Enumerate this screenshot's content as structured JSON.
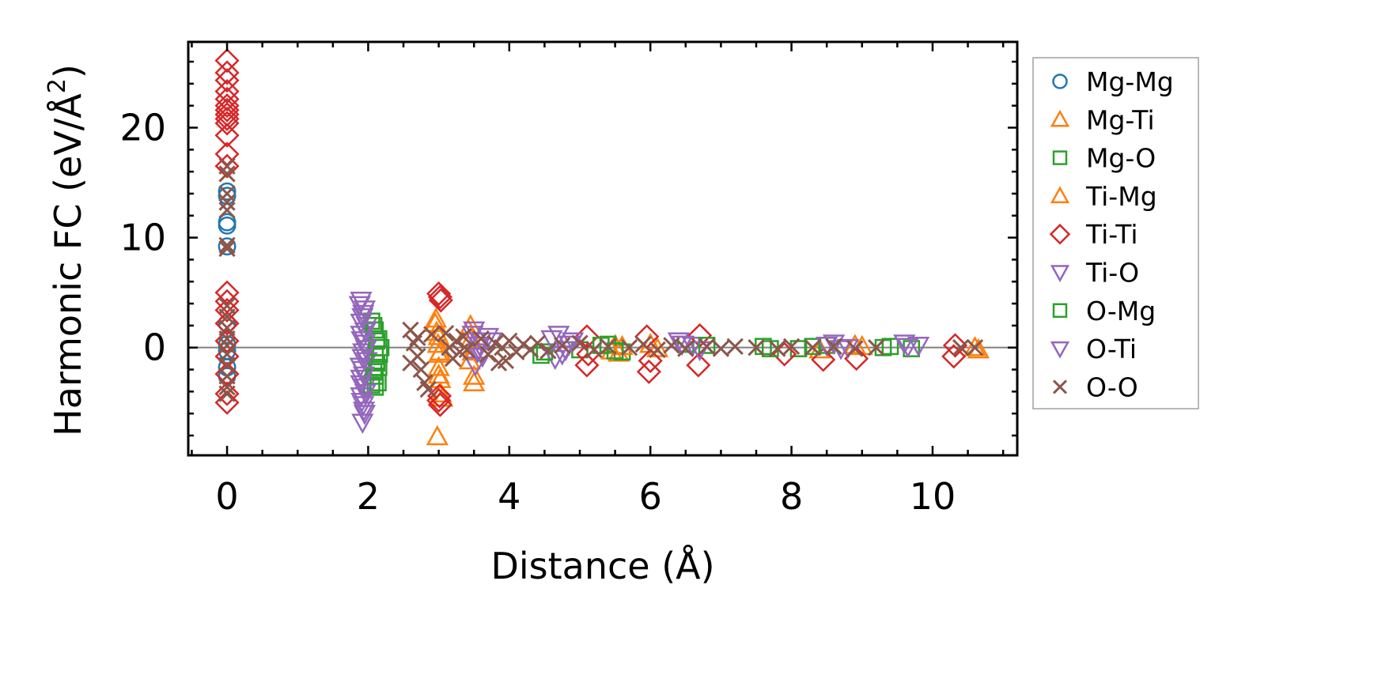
{
  "chart_data": {
    "type": "scatter",
    "title": "",
    "xlabel": "Distance (Å)",
    "ylabel": {
      "prefix": "Harmonic FC (eV/Å",
      "sup": "2",
      "suffix": ")"
    },
    "xlim": [
      -0.55,
      11.2
    ],
    "ylim": [
      -9.8,
      27.8
    ],
    "xticks": [
      0,
      2,
      4,
      6,
      8,
      10
    ],
    "yticks": [
      0,
      10,
      20
    ],
    "minor_ticks": true,
    "ticks_direction": "in",
    "ticks_all_sides": true,
    "zero_line": true,
    "zero_line_color": "#808080",
    "legend_position": "outside-right",
    "series": [
      {
        "name": "Mg-Mg",
        "color": "#1f77b4",
        "marker": "circle",
        "points": [
          [
            0,
            14.2
          ],
          [
            0,
            13.8
          ],
          [
            0,
            11.4
          ],
          [
            0,
            11.1
          ],
          [
            0,
            9.2
          ],
          [
            0,
            2.2
          ],
          [
            0,
            0.3
          ],
          [
            0,
            -0.3
          ],
          [
            0,
            -1.8
          ],
          [
            0,
            -2.6
          ]
        ]
      },
      {
        "name": "Mg-Ti",
        "color": "#ff7f0e",
        "marker": "triangle-up",
        "points": [
          [
            2.96,
            2.6
          ],
          [
            2.97,
            1.4
          ],
          [
            2.99,
            0.3
          ],
          [
            3.0,
            -0.6
          ],
          [
            3.0,
            -1.8
          ],
          [
            3.02,
            -2.9
          ],
          [
            3.03,
            -4.2
          ],
          [
            2.98,
            -8.1
          ],
          [
            3.45,
            2.0
          ],
          [
            3.46,
            0.8
          ],
          [
            3.44,
            -1.2
          ],
          [
            3.5,
            -3.2
          ],
          [
            5.5,
            0.2
          ],
          [
            5.55,
            -0.5
          ],
          [
            6.0,
            0.3
          ],
          [
            8.4,
            -0.2
          ],
          [
            9.0,
            0.1
          ],
          [
            10.65,
            -0.2
          ]
        ]
      },
      {
        "name": "Mg-O",
        "color": "#2ca02c",
        "marker": "square",
        "points": [
          [
            2.05,
            2.4
          ],
          [
            2.1,
            1.6
          ],
          [
            2.15,
            0.8
          ],
          [
            2.18,
            0.0
          ],
          [
            2.1,
            -0.8
          ],
          [
            2.15,
            -1.8
          ],
          [
            2.1,
            -2.6
          ],
          [
            2.05,
            -3.4
          ],
          [
            2.1,
            -3.6
          ],
          [
            4.45,
            -0.7
          ],
          [
            5.0,
            -0.2
          ],
          [
            5.4,
            0.3
          ],
          [
            5.6,
            -0.4
          ],
          [
            6.5,
            0.3
          ],
          [
            7.6,
            0.1
          ],
          [
            8.1,
            -0.1
          ],
          [
            8.5,
            0.2
          ],
          [
            9.4,
            0.1
          ],
          [
            9.7,
            -0.1
          ]
        ]
      },
      {
        "name": "Ti-Mg",
        "color": "#ff7f0e",
        "marker": "triangle-up",
        "points": [
          [
            2.95,
            2.2
          ],
          [
            3.0,
            1.0
          ],
          [
            3.02,
            -0.4
          ],
          [
            3.0,
            -2.5
          ],
          [
            3.05,
            -4.6
          ],
          [
            3.42,
            1.6
          ],
          [
            3.48,
            -0.4
          ],
          [
            3.5,
            -2.6
          ],
          [
            5.45,
            -0.3
          ],
          [
            5.6,
            0.1
          ],
          [
            6.1,
            -0.1
          ],
          [
            8.9,
            0.2
          ],
          [
            10.6,
            0.0
          ]
        ]
      },
      {
        "name": "Ti-Ti",
        "color": "#d62728",
        "marker": "diamond",
        "points": [
          [
            0,
            26.1
          ],
          [
            0,
            25.0
          ],
          [
            0,
            24.3
          ],
          [
            0,
            23.3
          ],
          [
            0,
            22.6
          ],
          [
            0,
            22.0
          ],
          [
            0,
            21.6
          ],
          [
            0,
            21.2
          ],
          [
            0,
            20.8
          ],
          [
            0,
            20.4
          ],
          [
            0,
            19.3
          ],
          [
            0,
            17.6
          ],
          [
            0,
            16.5
          ],
          [
            0,
            5.0
          ],
          [
            0,
            4.2
          ],
          [
            0,
            3.4
          ],
          [
            0,
            2.2
          ],
          [
            0,
            0.6
          ],
          [
            0,
            -0.8
          ],
          [
            0,
            -2.4
          ],
          [
            0,
            -4.2
          ],
          [
            0,
            -5.0
          ],
          [
            3.0,
            4.9
          ],
          [
            3.02,
            4.6
          ],
          [
            3.03,
            4.3
          ],
          [
            3.01,
            -4.4
          ],
          [
            3.0,
            -4.8
          ],
          [
            3.02,
            -5.2
          ],
          [
            5.1,
            1.0
          ],
          [
            5.12,
            -0.6
          ],
          [
            5.1,
            -1.6
          ],
          [
            5.95,
            1.0
          ],
          [
            6.0,
            -1.2
          ],
          [
            5.98,
            -2.2
          ],
          [
            6.7,
            1.1
          ],
          [
            6.68,
            -1.6
          ],
          [
            7.9,
            -0.6
          ],
          [
            8.45,
            -1.1
          ],
          [
            8.92,
            -1.0
          ],
          [
            10.3,
            -0.8
          ],
          [
            10.32,
            0.2
          ]
        ]
      },
      {
        "name": "Ti-O",
        "color": "#9467bd",
        "marker": "triangle-down",
        "points": [
          [
            1.9,
            4.3
          ],
          [
            1.95,
            3.5
          ],
          [
            1.92,
            2.8
          ],
          [
            1.98,
            2.0
          ],
          [
            1.9,
            1.2
          ],
          [
            1.95,
            0.4
          ],
          [
            1.93,
            -0.4
          ],
          [
            1.98,
            -1.2
          ],
          [
            1.92,
            -2.0
          ],
          [
            1.9,
            -2.8
          ],
          [
            1.95,
            -3.6
          ],
          [
            1.9,
            -4.4
          ],
          [
            1.93,
            -5.2
          ],
          [
            1.95,
            -6.0
          ],
          [
            1.92,
            -6.8
          ],
          [
            3.5,
            1.6
          ],
          [
            3.6,
            0.6
          ],
          [
            3.55,
            -0.4
          ],
          [
            3.52,
            -1.6
          ],
          [
            3.7,
            1.0
          ],
          [
            4.7,
            1.2
          ],
          [
            4.8,
            -0.2
          ],
          [
            4.65,
            -1.0
          ],
          [
            4.9,
            0.6
          ],
          [
            6.4,
            0.6
          ],
          [
            6.6,
            0.2
          ],
          [
            8.6,
            0.4
          ],
          [
            8.8,
            0.0
          ],
          [
            9.6,
            0.4
          ],
          [
            9.8,
            0.2
          ]
        ]
      },
      {
        "name": "O-Mg",
        "color": "#2ca02c",
        "marker": "square",
        "points": [
          [
            2.08,
            2.0
          ],
          [
            2.12,
            0.6
          ],
          [
            2.16,
            -0.6
          ],
          [
            2.12,
            -1.4
          ],
          [
            2.08,
            -2.2
          ],
          [
            2.14,
            -3.2
          ],
          [
            4.5,
            -0.4
          ],
          [
            5.3,
            0.2
          ],
          [
            5.5,
            -0.3
          ],
          [
            6.8,
            0.2
          ],
          [
            7.7,
            -0.1
          ],
          [
            8.3,
            0.1
          ],
          [
            9.3,
            0.0
          ]
        ]
      },
      {
        "name": "O-Ti",
        "color": "#9467bd",
        "marker": "triangle-down",
        "points": [
          [
            1.88,
            3.9
          ],
          [
            1.93,
            3.1
          ],
          [
            1.9,
            2.3
          ],
          [
            1.96,
            1.5
          ],
          [
            1.91,
            0.7
          ],
          [
            1.97,
            -0.1
          ],
          [
            1.92,
            -0.9
          ],
          [
            1.89,
            -1.7
          ],
          [
            1.94,
            -2.5
          ],
          [
            1.9,
            -3.3
          ],
          [
            1.96,
            -4.1
          ],
          [
            1.91,
            -4.9
          ],
          [
            1.94,
            -5.7
          ],
          [
            3.48,
            1.2
          ],
          [
            3.58,
            0.2
          ],
          [
            3.62,
            -0.8
          ],
          [
            3.75,
            0.6
          ],
          [
            4.6,
            0.8
          ],
          [
            4.75,
            -0.6
          ],
          [
            4.85,
            0.3
          ],
          [
            6.45,
            0.3
          ],
          [
            6.7,
            -0.2
          ],
          [
            8.5,
            0.2
          ],
          [
            8.7,
            -0.1
          ],
          [
            9.65,
            0.1
          ]
        ]
      },
      {
        "name": "O-O",
        "color": "#8c564b",
        "marker": "x",
        "points": [
          [
            0,
            16.5
          ],
          [
            0,
            15.8
          ],
          [
            0,
            14.0
          ],
          [
            0,
            13.2
          ],
          [
            0,
            12.5
          ],
          [
            0,
            9.3
          ],
          [
            0,
            9.0
          ],
          [
            0,
            3.8
          ],
          [
            0,
            2.8
          ],
          [
            0,
            1.8
          ],
          [
            0,
            0.8
          ],
          [
            0,
            0.2
          ],
          [
            0,
            -0.6
          ],
          [
            0,
            -1.6
          ],
          [
            0,
            -2.6
          ],
          [
            0,
            -3.6
          ],
          [
            0,
            -4.2
          ],
          [
            2.6,
            1.6
          ],
          [
            2.65,
            0.4
          ],
          [
            2.7,
            -0.8
          ],
          [
            2.75,
            -2.0
          ],
          [
            2.8,
            -3.2
          ],
          [
            2.85,
            -3.8
          ],
          [
            2.9,
            1.2
          ],
          [
            2.6,
            -1.4
          ],
          [
            2.7,
            0.9
          ],
          [
            3.1,
            1.3
          ],
          [
            3.15,
            0.0
          ],
          [
            3.2,
            -1.0
          ],
          [
            3.25,
            0.6
          ],
          [
            3.3,
            -0.4
          ],
          [
            3.35,
            1.0
          ],
          [
            3.4,
            -0.2
          ],
          [
            3.6,
            0.8
          ],
          [
            3.7,
            -0.6
          ],
          [
            3.8,
            0.4
          ],
          [
            3.85,
            -1.4
          ],
          [
            3.9,
            0.0
          ],
          [
            3.95,
            -1.2
          ],
          [
            4.0,
            0.6
          ],
          [
            4.1,
            -0.4
          ],
          [
            4.2,
            0.3
          ],
          [
            4.3,
            -0.2
          ],
          [
            4.4,
            0.4
          ],
          [
            4.55,
            -0.3
          ],
          [
            4.75,
            0.2
          ],
          [
            5.0,
            0.4
          ],
          [
            5.2,
            -0.2
          ],
          [
            5.4,
            0.1
          ],
          [
            5.7,
            0.0
          ],
          [
            5.9,
            0.3
          ],
          [
            6.1,
            -0.2
          ],
          [
            6.3,
            0.2
          ],
          [
            6.5,
            -0.1
          ],
          [
            6.8,
            0.1
          ],
          [
            7.0,
            -0.1
          ],
          [
            7.2,
            0.1
          ],
          [
            7.5,
            0.0
          ],
          [
            7.8,
            -0.1
          ],
          [
            8.0,
            0.1
          ],
          [
            8.3,
            0.0
          ],
          [
            8.6,
            0.1
          ],
          [
            8.9,
            -0.1
          ],
          [
            9.2,
            0.0
          ],
          [
            10.4,
            0.0
          ],
          [
            10.6,
            0.0
          ]
        ]
      }
    ]
  }
}
